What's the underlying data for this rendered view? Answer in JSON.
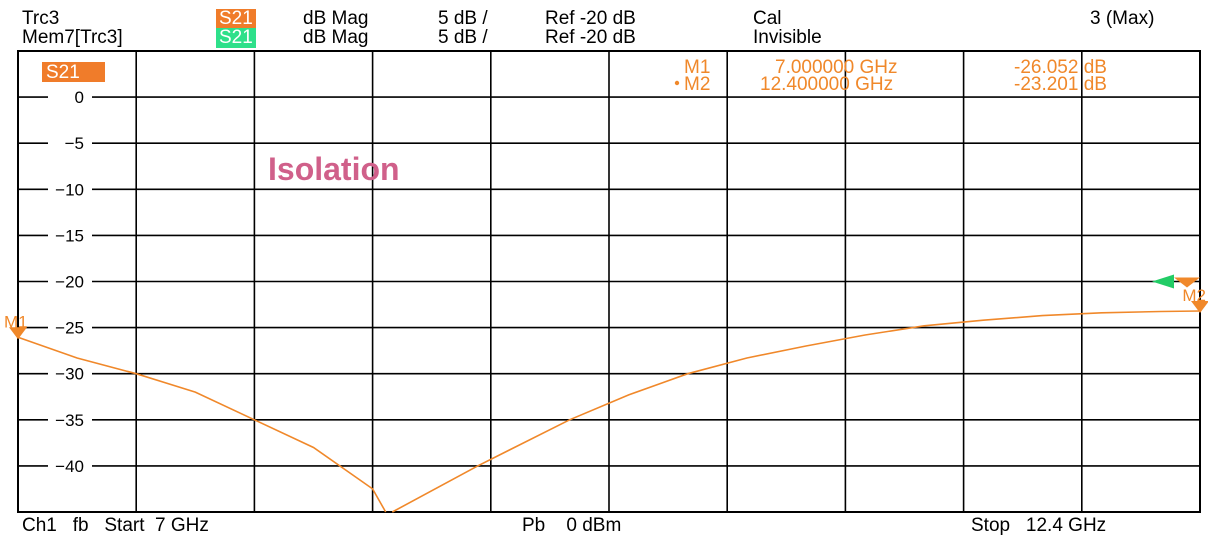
{
  "header": {
    "trace1": {
      "name": "Trc3",
      "param": "S21",
      "format": "dB Mag",
      "scale": "5 dB /",
      "ref": "Ref -20 dB",
      "status": "Cal"
    },
    "trace2": {
      "name": "Mem7[Trc3]",
      "param": "S21",
      "format": "dB Mag",
      "scale": "5 dB /",
      "ref": "Ref -20 dB",
      "status": "Invisible"
    },
    "right": "3 (Max)"
  },
  "plot": {
    "trace_badge": "S21",
    "annotation": "Isolation",
    "markers": [
      {
        "label": "M1",
        "freq": "7.000000 GHz",
        "value": "-26.052 dB",
        "active": false
      },
      {
        "label": "M2",
        "freq": "12.400000 GHz",
        "value": "-23.201 dB",
        "active": true
      }
    ]
  },
  "footer": {
    "left": "Ch1   fb   Start  7 GHz",
    "center": "Pb    0 dBm",
    "right": "Stop   12.4 GHz"
  },
  "colors": {
    "trace": "#f0882a",
    "badge_orange": "#f07c2a",
    "badge_green": "#2ee08a",
    "annotation": "#d0608a",
    "ref_arrow": "#22cc66",
    "grid": "#000000"
  },
  "chart_data": {
    "type": "line",
    "title": "",
    "xlabel": "",
    "ylabel": "",
    "xlim": [
      7,
      12.4
    ],
    "ylim": [
      -45,
      5
    ],
    "xunit": "GHz",
    "yunit": "dB",
    "yticks": [
      0,
      -5,
      -10,
      -15,
      -20,
      -25,
      -30,
      -35,
      -40
    ],
    "reference_level": -20,
    "grid": true,
    "legend": "none",
    "series": [
      {
        "name": "S21",
        "x": [
          7.0,
          7.27,
          7.54,
          7.81,
          8.08,
          8.35,
          8.62,
          8.68,
          8.71,
          9.1,
          9.52,
          9.79,
          10.06,
          10.33,
          10.6,
          10.87,
          11.14,
          11.41,
          11.68,
          11.95,
          12.22,
          12.4
        ],
        "y": [
          -26.05,
          -28.3,
          -30.0,
          -32.0,
          -35.0,
          -38.0,
          -42.5,
          -45.0,
          -45.0,
          -40.0,
          -35.0,
          -32.3,
          -30.0,
          -28.3,
          -27.0,
          -25.8,
          -24.8,
          -24.2,
          -23.7,
          -23.4,
          -23.25,
          -23.2
        ]
      }
    ]
  }
}
